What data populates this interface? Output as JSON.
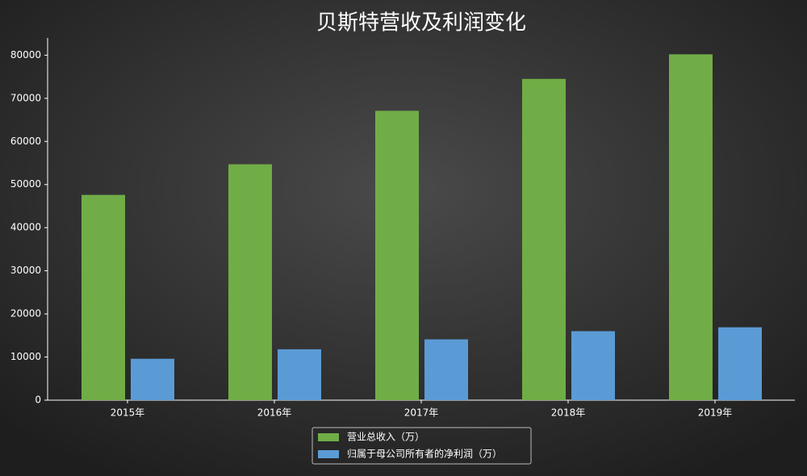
{
  "chart_data": {
    "type": "bar",
    "title": "贝斯特营收及利润变化",
    "categories": [
      "2015年",
      "2016年",
      "2017年",
      "2018年",
      "2019年"
    ],
    "series": [
      {
        "name": "营业总收入（万）",
        "color": "#70ad47",
        "values": [
          47600,
          54700,
          67100,
          74500,
          80200
        ]
      },
      {
        "name": "归属于母公司所有者的净利润（万）",
        "color": "#5b9bd5",
        "values": [
          9600,
          11800,
          14100,
          16000,
          16900
        ]
      }
    ],
    "ylim": [
      0,
      84000
    ],
    "yticks": [
      0,
      10000,
      20000,
      30000,
      40000,
      50000,
      60000,
      70000,
      80000
    ],
    "grid": false,
    "legend": "bottom"
  }
}
